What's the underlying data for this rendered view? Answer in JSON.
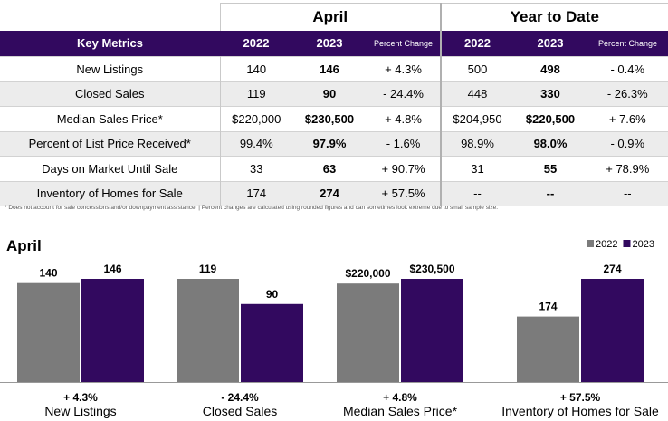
{
  "table": {
    "period_april": "April",
    "period_ytd": "Year to Date",
    "header": {
      "label": "Key Metrics",
      "col_2022": "2022",
      "col_2023": "2023",
      "col_pct": "Percent Change",
      "ytd_2022": "2022",
      "ytd_2023": "2023",
      "ytd_pct": "Percent Change"
    },
    "rows": [
      {
        "label": "New Listings",
        "apr_2022": "140",
        "apr_2023": "146",
        "apr_pct": "+ 4.3%",
        "ytd_2022": "500",
        "ytd_2023": "498",
        "ytd_pct": "- 0.4%"
      },
      {
        "label": "Closed Sales",
        "apr_2022": "119",
        "apr_2023": "90",
        "apr_pct": "- 24.4%",
        "ytd_2022": "448",
        "ytd_2023": "330",
        "ytd_pct": "- 26.3%"
      },
      {
        "label": "Median Sales Price*",
        "apr_2022": "$220,000",
        "apr_2023": "$230,500",
        "apr_pct": "+ 4.8%",
        "ytd_2022": "$204,950",
        "ytd_2023": "$220,500",
        "ytd_pct": "+ 7.6%"
      },
      {
        "label": "Percent of List Price Received*",
        "apr_2022": "99.4%",
        "apr_2023": "97.9%",
        "apr_pct": "- 1.6%",
        "ytd_2022": "98.9%",
        "ytd_2023": "98.0%",
        "ytd_pct": "- 0.9%"
      },
      {
        "label": "Days on Market Until Sale",
        "apr_2022": "33",
        "apr_2023": "63",
        "apr_pct": "+ 90.7%",
        "ytd_2022": "31",
        "ytd_2023": "55",
        "ytd_pct": "+ 78.9%"
      },
      {
        "label": "Inventory of Homes for Sale",
        "apr_2022": "174",
        "apr_2023": "274",
        "apr_pct": "+ 57.5%",
        "ytd_2022": "--",
        "ytd_2023": "--",
        "ytd_pct": "--"
      }
    ]
  },
  "footnote": "* Does not account for sale concessions and/or downpayment assistance.  |  Percent changes are calculated using rounded figures and can sometimes look extreme due to small sample size.",
  "colors": {
    "brand_purple": "#32095f",
    "bar_2022": "#7b7b7b",
    "bar_2023": "#32095f",
    "row_shade": "#ececec"
  },
  "chart_data": {
    "type": "bar",
    "title": "April",
    "legend_position": "top-right",
    "grid": false,
    "series": [
      {
        "name": "2022",
        "color": "#7b7b7b"
      },
      {
        "name": "2023",
        "color": "#32095f"
      }
    ],
    "groups": [
      {
        "category": "New Listings",
        "change": "+ 4.3%",
        "values": [
          140,
          146
        ],
        "labels": [
          "140",
          "146"
        ]
      },
      {
        "category": "Closed Sales",
        "change": "- 24.4%",
        "values": [
          119,
          90
        ],
        "labels": [
          "119",
          "90"
        ]
      },
      {
        "category": "Median Sales Price*",
        "change": "+ 4.8%",
        "values": [
          220000,
          230500
        ],
        "labels": [
          "$220,000",
          "$230,500"
        ]
      },
      {
        "category": "Inventory of Homes for Sale",
        "change": "+ 57.5%",
        "values": [
          174,
          274
        ],
        "labels": [
          "174",
          "274"
        ]
      }
    ]
  }
}
